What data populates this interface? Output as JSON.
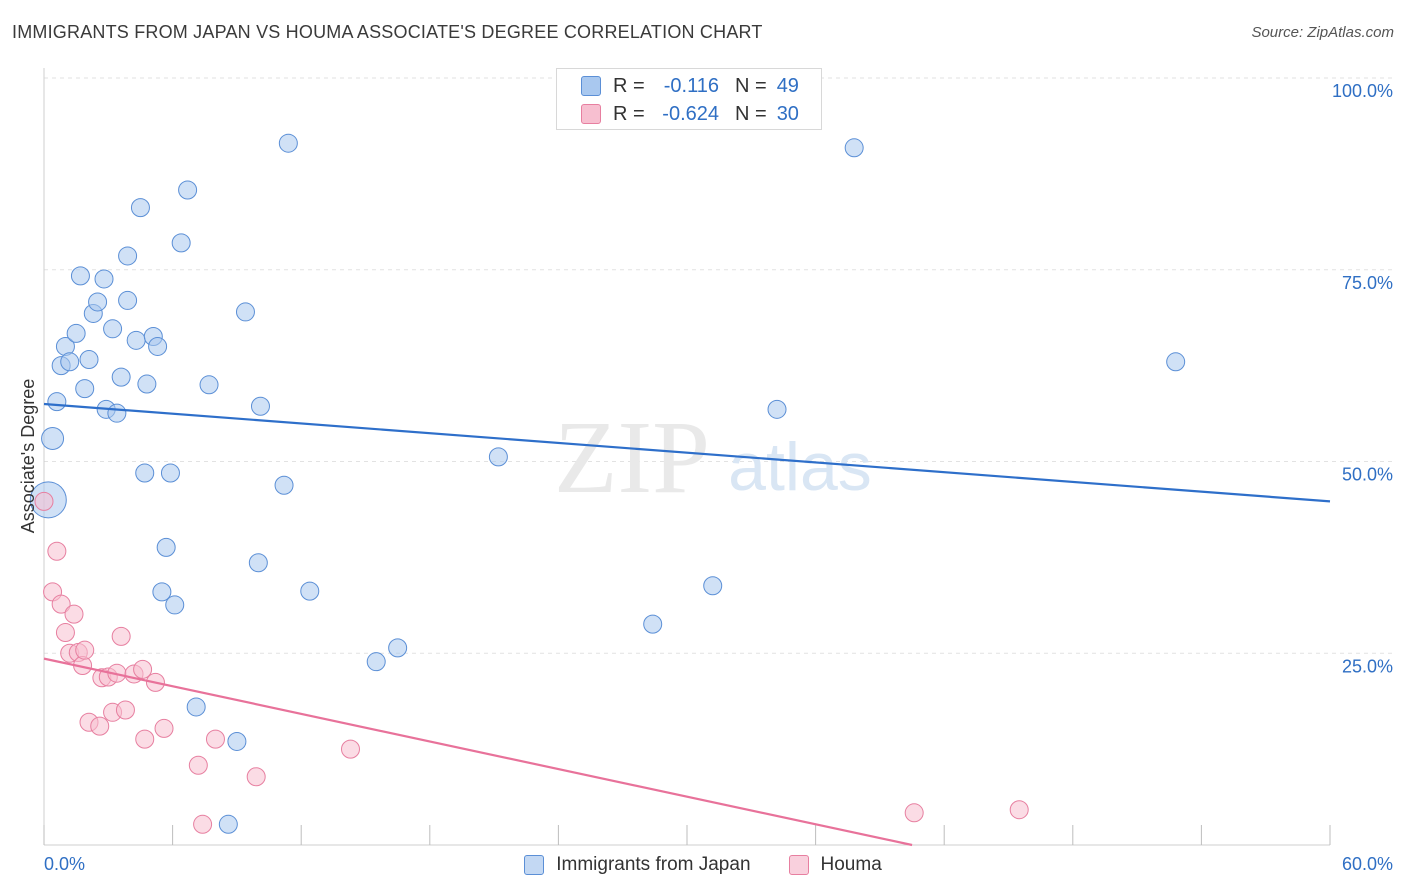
{
  "header": {
    "title": "IMMIGRANTS FROM JAPAN VS HOUMA ASSOCIATE'S DEGREE CORRELATION CHART",
    "source": "Source: ZipAtlas.com"
  },
  "legend_top": [
    {
      "r_label": "R =",
      "r_value": "-0.116",
      "n_label": "N =",
      "n_value": "49",
      "color": "#a9c8ef",
      "border": "#5b8fd6"
    },
    {
      "r_label": "R =",
      "r_value": "-0.624",
      "n_label": "N =",
      "n_value": "30",
      "color": "#f7bfd0",
      "border": "#e77fa0"
    }
  ],
  "legend_bottom": [
    {
      "label": "Immigrants from Japan",
      "color": "#c3d8f3",
      "border": "#5b8fd6"
    },
    {
      "label": "Houma",
      "color": "#f9d0dd",
      "border": "#e77fa0"
    }
  ],
  "watermark": {
    "zip": "ZIP",
    "atlas": "atlas"
  },
  "chart_data": {
    "type": "scatter",
    "title": "IMMIGRANTS FROM JAPAN VS HOUMA ASSOCIATE'S DEGREE CORRELATION CHART",
    "xlabel": "",
    "ylabel": "Associate's Degree",
    "xlim": [
      0,
      60
    ],
    "ylim": [
      0,
      100
    ],
    "x_tick_labels": [
      "0.0%",
      "60.0%"
    ],
    "y_ticks": [
      25,
      50,
      75,
      100
    ],
    "y_tick_labels": [
      "25.0%",
      "50.0%",
      "75.0%",
      "100.0%"
    ],
    "grid": true,
    "legend": "top-center",
    "series": [
      {
        "name": "Immigrants from Japan",
        "color": "#a9c8ef",
        "line_color": "#2e6fca",
        "trend": {
          "x": [
            0,
            60
          ],
          "y": [
            57.5,
            44.8
          ]
        },
        "points": [
          [
            0.2,
            45.0,
            18
          ],
          [
            0.4,
            53.0,
            11
          ],
          [
            0.6,
            57.8,
            9
          ],
          [
            0.8,
            62.5,
            9
          ],
          [
            1.0,
            65.0,
            9
          ],
          [
            1.2,
            63.0,
            9
          ],
          [
            1.5,
            66.7,
            9
          ],
          [
            1.7,
            74.2,
            9
          ],
          [
            1.9,
            59.5,
            9
          ],
          [
            2.1,
            63.3,
            9
          ],
          [
            2.3,
            69.3,
            9
          ],
          [
            2.5,
            70.8,
            9
          ],
          [
            2.8,
            73.8,
            9
          ],
          [
            2.9,
            56.8,
            9
          ],
          [
            3.2,
            67.3,
            9
          ],
          [
            3.4,
            56.3,
            9
          ],
          [
            3.6,
            61.0,
            9
          ],
          [
            3.9,
            76.8,
            9
          ],
          [
            3.9,
            71.0,
            9
          ],
          [
            4.3,
            65.8,
            9
          ],
          [
            4.5,
            83.1,
            9
          ],
          [
            4.7,
            48.5,
            9
          ],
          [
            4.8,
            60.1,
            9
          ],
          [
            5.1,
            66.3,
            9
          ],
          [
            5.3,
            65.0,
            9
          ],
          [
            5.5,
            33.0,
            9
          ],
          [
            5.7,
            38.8,
            9
          ],
          [
            5.9,
            48.5,
            9
          ],
          [
            6.1,
            31.3,
            9
          ],
          [
            6.4,
            78.5,
            9
          ],
          [
            6.7,
            85.4,
            9
          ],
          [
            7.1,
            18.0,
            9
          ],
          [
            7.7,
            60.0,
            9
          ],
          [
            8.6,
            2.7,
            9
          ],
          [
            9.0,
            13.5,
            9
          ],
          [
            9.4,
            69.5,
            9
          ],
          [
            10.0,
            36.8,
            9
          ],
          [
            10.1,
            57.2,
            9
          ],
          [
            11.2,
            46.9,
            9
          ],
          [
            11.4,
            91.5,
            9
          ],
          [
            12.4,
            33.1,
            9
          ],
          [
            15.5,
            23.9,
            9
          ],
          [
            16.5,
            25.7,
            9
          ],
          [
            21.2,
            50.6,
            9
          ],
          [
            28.4,
            28.8,
            9
          ],
          [
            31.2,
            33.8,
            9
          ],
          [
            34.2,
            56.8,
            9
          ],
          [
            37.8,
            90.9,
            9
          ],
          [
            52.8,
            63.0,
            9
          ]
        ]
      },
      {
        "name": "Houma",
        "color": "#f7bfd0",
        "line_color": "#e8729a",
        "trend": {
          "x": [
            0,
            40.5
          ],
          "y": [
            24.3,
            0
          ]
        },
        "points": [
          [
            0.0,
            44.8,
            9
          ],
          [
            0.4,
            33.0,
            9
          ],
          [
            0.6,
            38.3,
            9
          ],
          [
            0.8,
            31.4,
            9
          ],
          [
            1.0,
            27.7,
            9
          ],
          [
            1.2,
            25.0,
            9
          ],
          [
            1.4,
            30.1,
            9
          ],
          [
            1.6,
            25.1,
            9
          ],
          [
            1.8,
            23.4,
            9
          ],
          [
            1.9,
            25.4,
            9
          ],
          [
            2.1,
            16.0,
            9
          ],
          [
            2.6,
            15.5,
            9
          ],
          [
            2.7,
            21.8,
            9
          ],
          [
            3.0,
            21.9,
            9
          ],
          [
            3.2,
            17.3,
            9
          ],
          [
            3.4,
            22.4,
            9
          ],
          [
            3.6,
            27.2,
            9
          ],
          [
            3.8,
            17.6,
            9
          ],
          [
            4.2,
            22.3,
            9
          ],
          [
            4.6,
            22.9,
            9
          ],
          [
            4.7,
            13.8,
            9
          ],
          [
            5.2,
            21.2,
            9
          ],
          [
            5.6,
            15.2,
            9
          ],
          [
            7.2,
            10.4,
            9
          ],
          [
            7.4,
            2.7,
            9
          ],
          [
            8.0,
            13.8,
            9
          ],
          [
            9.9,
            8.9,
            9
          ],
          [
            14.3,
            12.5,
            9
          ],
          [
            40.6,
            4.2,
            9
          ],
          [
            45.5,
            4.6,
            9
          ]
        ]
      }
    ]
  }
}
